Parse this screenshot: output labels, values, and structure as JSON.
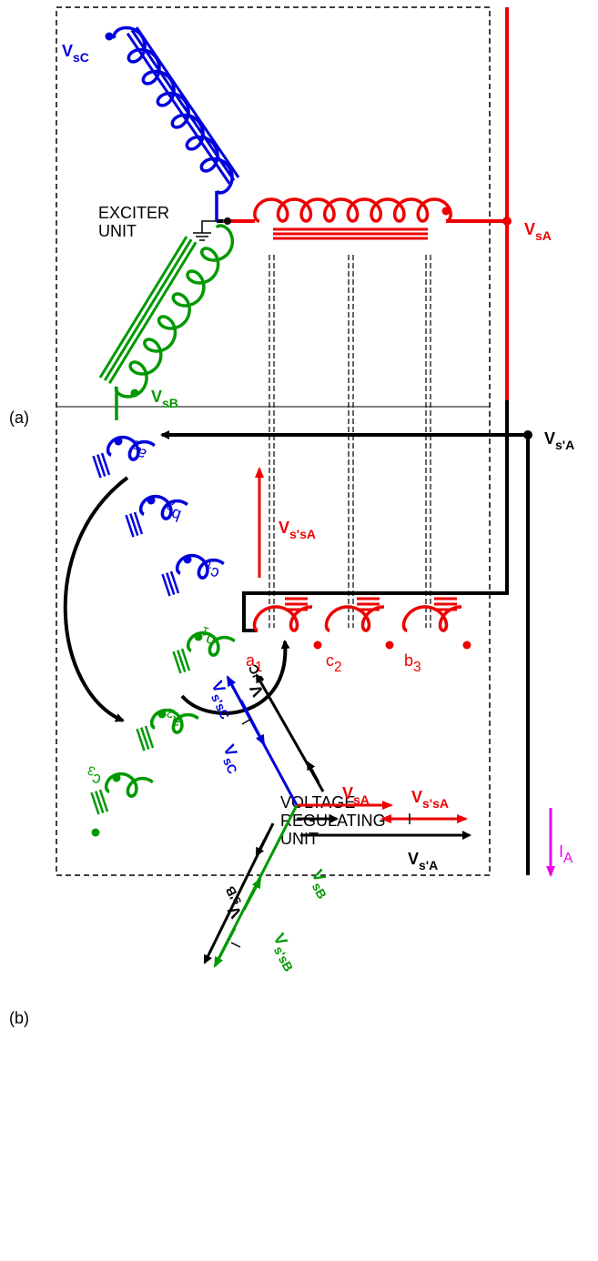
{
  "figure_a": {
    "label": "(a)",
    "exciter_unit": {
      "line1": "EXCITER",
      "line2": "UNIT"
    },
    "regulating_unit": {
      "line1": "VOLTAGE",
      "line2": "REGULATING",
      "line3": "UNIT"
    },
    "voltages": [
      {
        "main": "V",
        "sub": "sC"
      },
      {
        "main": "V",
        "sub": "sA"
      },
      {
        "main": "V",
        "sub": "sB"
      },
      {
        "main": "V",
        "sub": "s'A"
      },
      {
        "main": "V",
        "sub": "s'sA"
      }
    ],
    "current": {
      "main": "I",
      "sub": "A"
    },
    "windings": [
      {
        "main": "a",
        "sub": "3"
      },
      {
        "main": "b",
        "sub": "2"
      },
      {
        "main": "c",
        "sub": "1"
      },
      {
        "main": "b",
        "sub": "1"
      },
      {
        "main": "a",
        "sub": "2"
      },
      {
        "main": "c",
        "sub": "3"
      },
      {
        "main": "a",
        "sub": "1"
      },
      {
        "main": "c",
        "sub": "2"
      },
      {
        "main": "b",
        "sub": "3"
      }
    ]
  },
  "figure_b": {
    "label": "(b)",
    "phasors": [
      {
        "main": "V",
        "sub": "s'C"
      },
      {
        "main": "V",
        "sub": "s'sC"
      },
      {
        "main": "V",
        "sub": "sC"
      },
      {
        "main": "V",
        "sub": "sA"
      },
      {
        "main": "V",
        "sub": "s'sA"
      },
      {
        "main": "V",
        "sub": "s'A"
      },
      {
        "main": "V",
        "sub": "sB"
      },
      {
        "main": "V",
        "sub": "s'sB"
      },
      {
        "main": "V",
        "sub": "s'B"
      }
    ]
  }
}
